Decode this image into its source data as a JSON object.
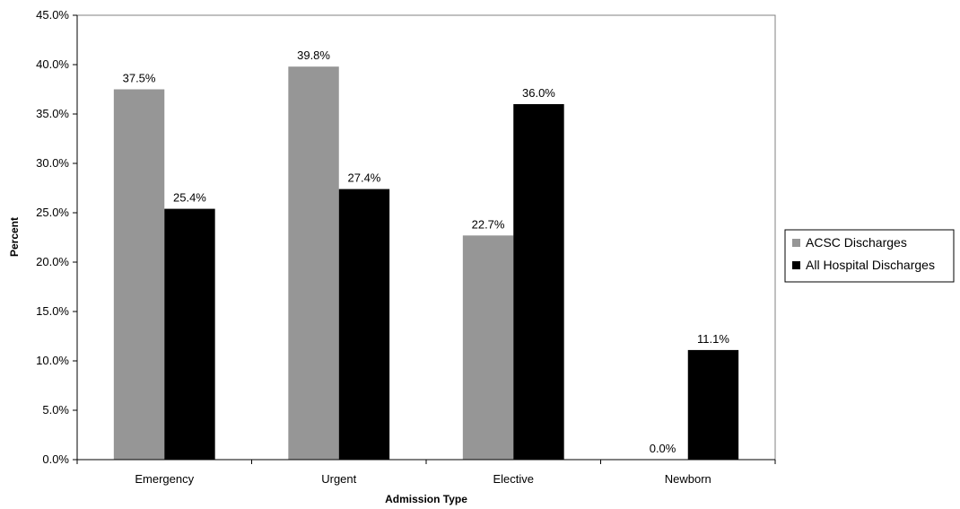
{
  "chart_data": {
    "type": "bar",
    "title": "",
    "xlabel": "Admission Type",
    "ylabel": "Percent",
    "categories": [
      "Emergency",
      "Urgent",
      "Elective",
      "Newborn"
    ],
    "series": [
      {
        "name": "ACSC Discharges",
        "color": "#969696",
        "values": [
          37.5,
          39.8,
          22.7,
          0.0
        ],
        "labels": [
          "37.5%",
          "39.8%",
          "22.7%",
          "0.0%"
        ]
      },
      {
        "name": "All Hospital Discharges",
        "color": "#000000",
        "values": [
          25.4,
          27.4,
          36.0,
          11.1
        ],
        "labels": [
          "25.4%",
          "27.4%",
          "36.0%",
          "11.1%"
        ]
      }
    ],
    "ylim": [
      0,
      45
    ],
    "yticks": [
      0,
      5,
      10,
      15,
      20,
      25,
      30,
      35,
      40,
      45
    ],
    "ytick_labels": [
      "0.0%",
      "5.0%",
      "10.0%",
      "15.0%",
      "20.0%",
      "25.0%",
      "30.0%",
      "35.0%",
      "40.0%",
      "45.0%"
    ],
    "grid": false,
    "legend_position": "right"
  }
}
